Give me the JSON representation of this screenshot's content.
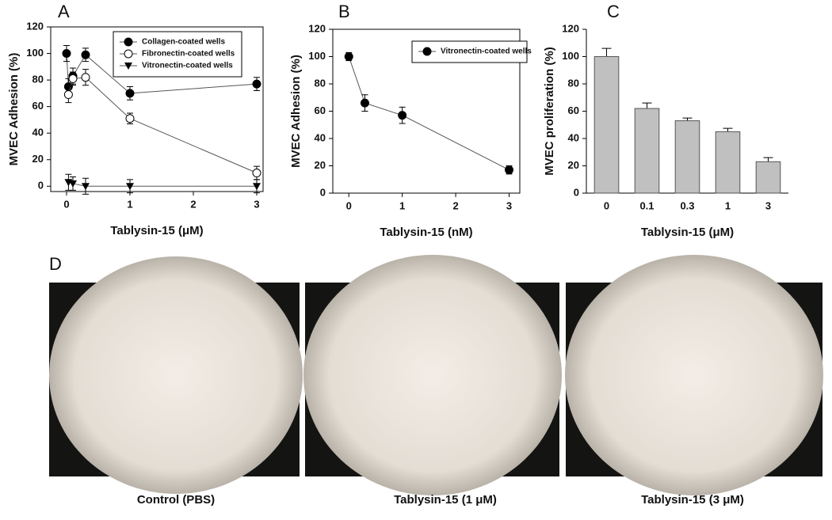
{
  "chart_data": [
    {
      "type": "line",
      "panel": "A",
      "x_label": "Tablysin-15 (μM)",
      "y_label": "MVEC Adhesion (%)",
      "xlim": [
        -0.25,
        3.1
      ],
      "xticks": [
        0,
        1,
        2,
        3
      ],
      "ylim": [
        -4,
        120
      ],
      "yticks": [
        0,
        20,
        40,
        60,
        80,
        100,
        120
      ],
      "legend": "upper right",
      "series": [
        {
          "name": "Collagen-coated wells",
          "color": "#000000",
          "marker": "circle-filled",
          "x": [
            0,
            0.03,
            0.1,
            0.3,
            1,
            3
          ],
          "values": [
            100,
            75,
            83,
            99,
            70,
            77
          ],
          "errors": [
            6,
            6,
            6,
            5,
            5,
            5
          ]
        },
        {
          "name": "Fibronectin-coated wells",
          "color": "#000000",
          "marker": "circle-open",
          "x": [
            0.03,
            0.1,
            0.3,
            1,
            3
          ],
          "values": [
            69,
            81,
            82,
            51,
            10
          ],
          "errors": [
            6,
            5,
            6,
            4,
            5
          ]
        },
        {
          "name": "Vitronectin-coated wells",
          "color": "#000000",
          "marker": "triangle-down",
          "x": [
            0.03,
            0.1,
            0.3,
            1,
            3
          ],
          "values": [
            3,
            2,
            0,
            0,
            0
          ],
          "errors": [
            6,
            5,
            6,
            5,
            5
          ]
        }
      ]
    },
    {
      "type": "line",
      "panel": "B",
      "x_label": "Tablysin-15 (nM)",
      "y_label": "MVEC Adhesion (%)",
      "xlim": [
        -0.3,
        3.2
      ],
      "xticks": [
        0,
        1,
        2,
        3
      ],
      "ylim": [
        0,
        120
      ],
      "yticks": [
        0,
        20,
        40,
        60,
        80,
        100,
        120
      ],
      "legend": "upper right",
      "series": [
        {
          "name": "Vitronectin-coated wells",
          "color": "#000000",
          "marker": "circle-filled",
          "x": [
            0,
            0.3,
            1,
            3
          ],
          "values": [
            100,
            66,
            57,
            17
          ],
          "errors": [
            3,
            6,
            6,
            3
          ]
        }
      ]
    },
    {
      "type": "bar",
      "panel": "C",
      "x_label": "Tablysin-15 (μM)",
      "y_label": "MVEC proliferation (%)",
      "categories": [
        "0",
        "0.1",
        "0.3",
        "1",
        "3"
      ],
      "values": [
        100,
        62,
        53,
        45,
        23
      ],
      "errors": [
        6,
        4,
        2,
        2.5,
        3
      ],
      "color": "#c0c0c0",
      "ylim": [
        0,
        120
      ],
      "yticks": [
        0,
        20,
        40,
        60,
        80,
        100,
        120
      ]
    }
  ],
  "images": {
    "panel": "D",
    "captions": [
      "Control (PBS)",
      "Tablysin-15 (1 μM)",
      "Tablysin-15  (3 μM)"
    ]
  }
}
